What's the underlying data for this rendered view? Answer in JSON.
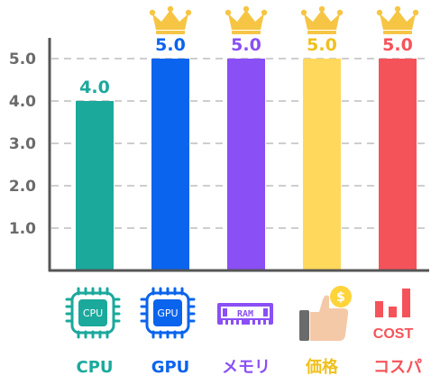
{
  "chart_data": {
    "type": "bar",
    "categories": [
      "CPU",
      "GPU",
      "メモリ",
      "価格",
      "コスパ"
    ],
    "values": [
      4.0,
      5.0,
      5.0,
      5.0,
      5.0
    ],
    "value_labels": [
      "4.0",
      "5.0",
      "5.0",
      "5.0",
      "5.0"
    ],
    "colors": [
      "#1ba99c",
      "#0a64ee",
      "#8a4ff5",
      "#ffd85c",
      "#f5535a"
    ],
    "label_colors": [
      "#1ba99c",
      "#0a64ee",
      "#8a4ff5",
      "#f0c01e",
      "#f5535a"
    ],
    "crowned": [
      false,
      true,
      true,
      true,
      true
    ],
    "yticks": [
      "1.0",
      "2.0",
      "3.0",
      "4.0",
      "5.0"
    ],
    "ylim": [
      0,
      5.0
    ],
    "grid": true,
    "icons": [
      "cpu-chip-icon",
      "gpu-chip-icon",
      "ram-module-icon",
      "thumbs-up-coin-icon",
      "cost-bar-icon"
    ],
    "icon_texts": {
      "cpu": "CPU",
      "gpu": "GPU",
      "ram": "RAM",
      "coin": "$",
      "cost": "COST"
    },
    "crown_color": "#f6c544"
  }
}
